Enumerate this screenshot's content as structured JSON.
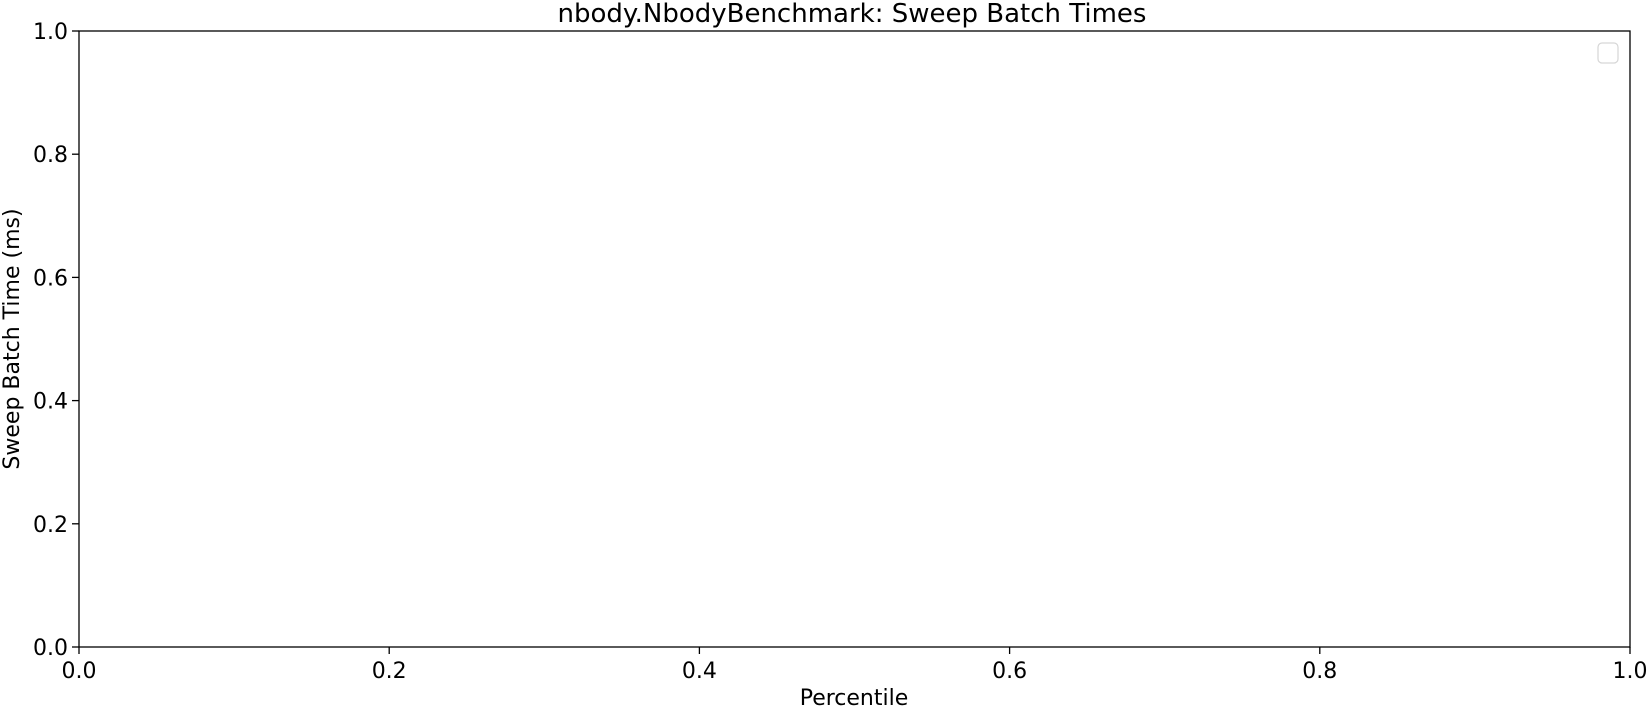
{
  "chart_data": {
    "type": "line",
    "title": "nbody.NbodyBenchmark: Sweep Batch Times",
    "xlabel": "Percentile",
    "ylabel": "Sweep Batch Time (ms)",
    "xlim": [
      0.0,
      1.0
    ],
    "ylim": [
      0.0,
      1.0
    ],
    "xticks": [
      0.0,
      0.2,
      0.4,
      0.6,
      0.8,
      1.0
    ],
    "yticks": [
      0.0,
      0.2,
      0.4,
      0.6,
      0.8,
      1.0
    ],
    "xtick_labels": [
      "0.0",
      "0.2",
      "0.4",
      "0.6",
      "0.8",
      "1.0"
    ],
    "ytick_labels": [
      "0.0",
      "0.2",
      "0.4",
      "0.6",
      "0.8",
      "1.0"
    ],
    "grid": false,
    "legend": {
      "placement": "top-right",
      "entries": []
    },
    "series": []
  }
}
